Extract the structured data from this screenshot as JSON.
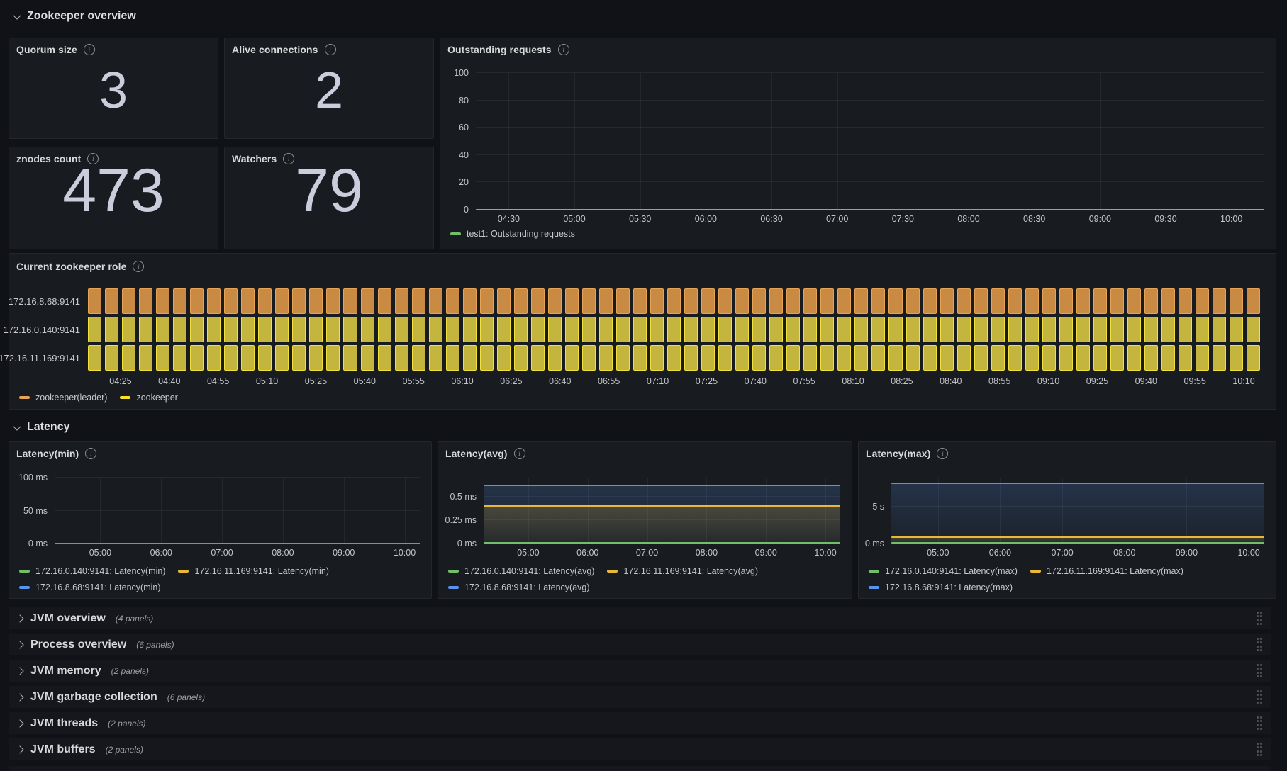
{
  "colors": {
    "background": "#111217",
    "panel": "#181b1f",
    "green": "#73bf69",
    "yellow": "#eab839",
    "blue": "#5794f2",
    "role_orange_fill": "#c98a43",
    "role_orange_border": "#e8a355",
    "role_yellow_fill": "#c3b53d",
    "role_yellow_border": "#f2e13c",
    "role_legend_orange": "#e8a355",
    "role_legend_yellow": "#fade2a"
  },
  "sections": {
    "overview": {
      "title": "Zookeeper overview",
      "collapsed": false
    },
    "latency": {
      "title": "Latency",
      "collapsed": false
    }
  },
  "stat_panels": [
    {
      "title": "Quorum size",
      "value": "3"
    },
    {
      "title": "Alive connections",
      "value": "2"
    },
    {
      "title": "znodes count",
      "value": "473"
    },
    {
      "title": "Watchers",
      "value": "79"
    }
  ],
  "chart_data": [
    {
      "id": "outstanding",
      "type": "line",
      "title": "Outstanding requests",
      "ylim": [
        0,
        100
      ],
      "y_ticks": [
        {
          "label": "100",
          "value": 100
        },
        {
          "label": "80",
          "value": 80
        },
        {
          "label": "60",
          "value": 60
        },
        {
          "label": "40",
          "value": 40
        },
        {
          "label": "20",
          "value": 20
        },
        {
          "label": "0",
          "value": 0
        }
      ],
      "x_range_minutes": [
        255,
        615
      ],
      "x_ticks": [
        "04:30",
        "05:00",
        "05:30",
        "06:00",
        "06:30",
        "07:00",
        "07:30",
        "08:00",
        "08:30",
        "09:00",
        "09:30",
        "10:00"
      ],
      "series": [
        {
          "name": "test1: Outstanding requests",
          "color": "#73bf69",
          "value": 0,
          "fill": false
        }
      ],
      "grid": true,
      "legend_position": "bottom"
    },
    {
      "id": "role",
      "type": "state-timeline",
      "title": "Current zookeeper role",
      "x_range_minutes": [
        255,
        615
      ],
      "x_ticks": [
        "04:25",
        "04:40",
        "04:55",
        "05:10",
        "05:25",
        "05:40",
        "05:55",
        "06:10",
        "06:25",
        "06:40",
        "06:55",
        "07:10",
        "07:25",
        "07:40",
        "07:55",
        "08:10",
        "08:25",
        "08:40",
        "08:55",
        "09:10",
        "09:25",
        "09:40",
        "09:55",
        "10:10"
      ],
      "segments_per_row": 69,
      "rows": [
        {
          "label": "172.16.8.68:9141",
          "state": "zookeeper(leader)",
          "fill": "#c98a43",
          "border": "#e8a355"
        },
        {
          "label": "172.16.0.140:9141",
          "state": "zookeeper",
          "fill": "#c3b53d",
          "border": "#f2e13c"
        },
        {
          "label": "172.16.11.169:9141",
          "state": "zookeeper",
          "fill": "#c3b53d",
          "border": "#f2e13c"
        }
      ],
      "legend": [
        {
          "label": "zookeeper(leader)",
          "color": "#e8a355"
        },
        {
          "label": "zookeeper",
          "color": "#fade2a"
        }
      ]
    },
    {
      "id": "latency_min",
      "type": "line",
      "title": "Latency(min)",
      "unit": "ms",
      "ylim": [
        0,
        100
      ],
      "y_ticks": [
        {
          "label": "100 ms",
          "value": 100
        },
        {
          "label": "50 ms",
          "value": 50
        },
        {
          "label": "0 ms",
          "value": 0
        }
      ],
      "x_range_minutes": [
        255,
        615
      ],
      "x_ticks": [
        "05:00",
        "06:00",
        "07:00",
        "08:00",
        "09:00",
        "10:00"
      ],
      "series": [
        {
          "name": "172.16.0.140:9141: Latency(min)",
          "color": "#73bf69",
          "value": 0,
          "fill": false
        },
        {
          "name": "172.16.11.169:9141: Latency(min)",
          "color": "#eab839",
          "value": 0,
          "fill": false
        },
        {
          "name": "172.16.8.68:9141: Latency(min)",
          "color": "#5794f2",
          "value": 0,
          "fill": false
        }
      ],
      "grid": true,
      "legend_position": "bottom"
    },
    {
      "id": "latency_avg",
      "type": "area",
      "title": "Latency(avg)",
      "unit": "ms",
      "ylim": [
        0,
        0.7
      ],
      "y_ticks": [
        {
          "label": "0.5 ms",
          "value": 0.5
        },
        {
          "label": "0.25 ms",
          "value": 0.25
        },
        {
          "label": "0 ms",
          "value": 0
        }
      ],
      "x_range_minutes": [
        255,
        615
      ],
      "x_ticks": [
        "05:00",
        "06:00",
        "07:00",
        "08:00",
        "09:00",
        "10:00"
      ],
      "series": [
        {
          "name": "172.16.0.140:9141: Latency(avg)",
          "color": "#73bf69",
          "value": 0.005,
          "fill": true
        },
        {
          "name": "172.16.11.169:9141: Latency(avg)",
          "color": "#eab839",
          "value": 0.4,
          "fill": true
        },
        {
          "name": "172.16.8.68:9141: Latency(avg)",
          "color": "#5794f2",
          "value": 0.62,
          "fill": true
        }
      ],
      "grid": true,
      "legend_position": "bottom"
    },
    {
      "id": "latency_max",
      "type": "area",
      "title": "Latency(max)",
      "unit": "s",
      "ylim": [
        0,
        9
      ],
      "y_ticks": [
        {
          "label": "5 s",
          "value": 5
        },
        {
          "label": "0 ms",
          "value": 0
        }
      ],
      "x_range_minutes": [
        255,
        615
      ],
      "x_ticks": [
        "05:00",
        "06:00",
        "07:00",
        "08:00",
        "09:00",
        "10:00"
      ],
      "series": [
        {
          "name": "172.16.0.140:9141: Latency(max)",
          "color": "#73bf69",
          "value": 0.07,
          "fill": true
        },
        {
          "name": "172.16.11.169:9141: Latency(max)",
          "color": "#eab839",
          "value": 0.87,
          "fill": true
        },
        {
          "name": "172.16.8.68:9141: Latency(max)",
          "color": "#5794f2",
          "value": 8.2,
          "fill": true
        }
      ],
      "grid": true,
      "legend_position": "bottom"
    }
  ],
  "collapsed_rows": [
    {
      "title": "JVM overview",
      "count": "(4 panels)"
    },
    {
      "title": "Process overview",
      "count": "(6 panels)"
    },
    {
      "title": "JVM memory",
      "count": "(2 panels)"
    },
    {
      "title": "JVM garbage collection",
      "count": "(6 panels)"
    },
    {
      "title": "JVM threads",
      "count": "(2 panels)"
    },
    {
      "title": "JVM buffers",
      "count": "(2 panels)"
    }
  ]
}
